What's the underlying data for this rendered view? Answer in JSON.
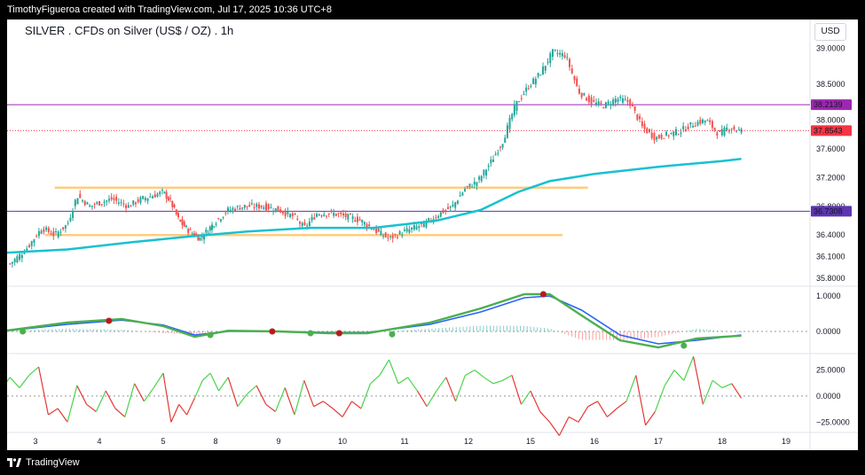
{
  "header": {
    "attribution": "TimothyFigueroa created with TradingView.com, Jul 17, 2025 10:36 UTC+8"
  },
  "footer": {
    "brand": "TradingView",
    "logo_icon": "tradingview-logo-icon"
  },
  "chart_title": "SILVER . CFDs on Silver (US$ / OZ) . 1h",
  "currency": "USD",
  "colors": {
    "up": "#26a69a",
    "down": "#ef5350",
    "ma": "#17c1d0",
    "range": "#ffcc80",
    "level_top": "#9c27b0",
    "level_bottom": "#5e35b1",
    "last_price": "#f23645",
    "macd_fast": "#4caf50",
    "macd_fast_down": "#b71c1c",
    "macd_signal": "#2962ff",
    "rsi_up": "#4cd34c",
    "rsi_down": "#e53935"
  },
  "chart_data": [
    {
      "type": "candlestick",
      "title": "SILVER . CFDs on Silver (US$ / OZ) . 1h",
      "x_ticks": [
        "3",
        "4",
        "5",
        "8",
        "9",
        "10",
        "11",
        "12",
        "15",
        "16",
        "17",
        "18",
        "19"
      ],
      "y_ticks": [
        "39.0000",
        "38.5000",
        "38.0000",
        "37.6000",
        "37.2000",
        "36.8000",
        "36.4000",
        "36.1000",
        "35.8000"
      ],
      "ylim": [
        35.7,
        39.4
      ],
      "price_labels": [
        {
          "value": 38.2139,
          "label": "38.2139",
          "color": "level_top"
        },
        {
          "value": 37.8543,
          "label": "37.8543",
          "color": "last_price"
        },
        {
          "value": 36.7308,
          "label": "36.7308",
          "color": "level_bottom"
        }
      ],
      "horizontal_levels": [
        38.2139,
        36.7308
      ],
      "range_lines": [
        {
          "from_day": 3.3,
          "to_day": 11.9,
          "price": 37.06
        },
        {
          "from_day": 3.15,
          "to_day": 11.5,
          "price": 36.4
        }
      ],
      "close_path": [
        [
          2.6,
          36.0
        ],
        [
          2.85,
          36.2
        ],
        [
          3.1,
          36.5
        ],
        [
          3.3,
          36.4
        ],
        [
          3.5,
          36.55
        ],
        [
          3.65,
          36.95
        ],
        [
          3.85,
          36.8
        ],
        [
          4.0,
          36.85
        ],
        [
          4.2,
          36.9
        ],
        [
          4.45,
          36.8
        ],
        [
          4.65,
          36.9
        ],
        [
          4.85,
          36.95
        ],
        [
          5.0,
          37.0
        ],
        [
          5.15,
          36.85
        ],
        [
          5.3,
          36.6
        ],
        [
          5.5,
          36.45
        ],
        [
          5.7,
          36.35
        ],
        [
          5.95,
          36.55
        ],
        [
          6.2,
          36.75
        ],
        [
          6.45,
          36.8
        ],
        [
          6.75,
          36.8
        ],
        [
          7.0,
          36.75
        ],
        [
          7.25,
          36.65
        ],
        [
          7.4,
          36.5
        ],
        [
          7.6,
          36.7
        ],
        [
          7.85,
          36.7
        ],
        [
          8.1,
          36.65
        ],
        [
          8.3,
          36.6
        ],
        [
          8.55,
          36.45
        ],
        [
          8.75,
          36.35
        ],
        [
          9.0,
          36.45
        ],
        [
          9.3,
          36.55
        ],
        [
          9.55,
          36.7
        ],
        [
          9.75,
          36.8
        ],
        [
          9.95,
          37.05
        ],
        [
          10.15,
          37.15
        ],
        [
          10.35,
          37.4
        ],
        [
          10.55,
          37.7
        ],
        [
          10.75,
          38.2
        ],
        [
          10.95,
          38.45
        ],
        [
          11.15,
          38.65
        ],
        [
          11.35,
          38.95
        ],
        [
          11.55,
          38.9
        ],
        [
          11.75,
          38.4
        ],
        [
          11.95,
          38.25
        ],
        [
          12.15,
          38.2
        ],
        [
          12.35,
          38.3
        ],
        [
          12.55,
          38.25
        ],
        [
          12.75,
          37.9
        ],
        [
          12.95,
          37.75
        ],
        [
          13.15,
          37.8
        ],
        [
          13.35,
          37.85
        ],
        [
          13.55,
          37.95
        ],
        [
          13.75,
          38.0
        ],
        [
          13.95,
          37.8
        ],
        [
          14.1,
          37.9
        ],
        [
          14.3,
          37.85
        ]
      ],
      "ma_path": [
        [
          2.45,
          36.15
        ],
        [
          3.5,
          36.2
        ],
        [
          4.5,
          36.3
        ],
        [
          5.5,
          36.38
        ],
        [
          6.5,
          36.45
        ],
        [
          7.5,
          36.5
        ],
        [
          8.5,
          36.5
        ],
        [
          9.5,
          36.6
        ],
        [
          10.2,
          36.75
        ],
        [
          10.8,
          37.0
        ],
        [
          11.3,
          37.15
        ],
        [
          12.0,
          37.25
        ],
        [
          13.0,
          37.35
        ],
        [
          14.0,
          37.43
        ],
        [
          14.3,
          37.46
        ]
      ]
    },
    {
      "type": "line",
      "title": "",
      "y_ticks": [
        "1.0000",
        "0.0000"
      ],
      "ylim": [
        -0.6,
        1.25
      ],
      "series": [
        {
          "role": "fast",
          "points": [
            [
              2.45,
              0.0
            ],
            [
              3.5,
              0.25
            ],
            [
              4.35,
              0.35
            ],
            [
              5.0,
              0.15
            ],
            [
              5.6,
              -0.15
            ],
            [
              6.2,
              0.02
            ],
            [
              7.0,
              0.0
            ],
            [
              7.8,
              -0.05
            ],
            [
              8.4,
              -0.05
            ],
            [
              9.4,
              0.25
            ],
            [
              10.2,
              0.65
            ],
            [
              10.9,
              1.05
            ],
            [
              11.3,
              1.05
            ],
            [
              11.8,
              0.45
            ],
            [
              12.4,
              -0.25
            ],
            [
              13.0,
              -0.45
            ],
            [
              13.6,
              -0.2
            ],
            [
              14.3,
              -0.12
            ]
          ]
        },
        {
          "role": "signal",
          "points": [
            [
              2.45,
              0.0
            ],
            [
              3.5,
              0.2
            ],
            [
              4.35,
              0.32
            ],
            [
              5.0,
              0.18
            ],
            [
              5.6,
              -0.1
            ],
            [
              6.2,
              0.0
            ],
            [
              7.0,
              0.0
            ],
            [
              7.8,
              -0.03
            ],
            [
              8.4,
              -0.03
            ],
            [
              9.4,
              0.2
            ],
            [
              10.2,
              0.55
            ],
            [
              10.9,
              0.95
            ],
            [
              11.3,
              1.0
            ],
            [
              11.8,
              0.6
            ],
            [
              12.4,
              -0.1
            ],
            [
              13.0,
              -0.35
            ],
            [
              13.6,
              -0.25
            ],
            [
              14.3,
              -0.1
            ]
          ]
        }
      ],
      "cross_markers": [
        [
          2.8,
          0.0,
          "up"
        ],
        [
          4.15,
          0.3,
          "down"
        ],
        [
          5.9,
          -0.1,
          "up"
        ],
        [
          6.9,
          0.0,
          "down"
        ],
        [
          7.5,
          -0.05,
          "up"
        ],
        [
          7.95,
          -0.05,
          "down"
        ],
        [
          8.8,
          -0.08,
          "up"
        ],
        [
          11.2,
          1.05,
          "down"
        ],
        [
          13.4,
          -0.4,
          "up"
        ]
      ]
    },
    {
      "type": "line",
      "title": "",
      "y_ticks": [
        "25.0000",
        "0.0000",
        "−25.0000"
      ],
      "ylim": [
        -35,
        40
      ],
      "series": [
        {
          "role": "oscillator",
          "points": [
            [
              2.45,
              5
            ],
            [
              2.6,
              18
            ],
            [
              2.75,
              8
            ],
            [
              2.9,
              20
            ],
            [
              3.05,
              28
            ],
            [
              3.2,
              -18
            ],
            [
              3.35,
              -12
            ],
            [
              3.5,
              -25
            ],
            [
              3.65,
              10
            ],
            [
              3.8,
              -8
            ],
            [
              3.95,
              -15
            ],
            [
              4.1,
              5
            ],
            [
              4.25,
              -12
            ],
            [
              4.4,
              -20
            ],
            [
              4.55,
              12
            ],
            [
              4.7,
              -5
            ],
            [
              4.85,
              8
            ],
            [
              5.0,
              22
            ],
            [
              5.15,
              -25
            ],
            [
              5.3,
              -8
            ],
            [
              5.45,
              -18
            ],
            [
              5.6,
              -2
            ],
            [
              5.75,
              15
            ],
            [
              5.9,
              22
            ],
            [
              6.05,
              5
            ],
            [
              6.2,
              18
            ],
            [
              6.35,
              -10
            ],
            [
              6.5,
              2
            ],
            [
              6.65,
              10
            ],
            [
              6.8,
              -8
            ],
            [
              6.95,
              -15
            ],
            [
              7.1,
              8
            ],
            [
              7.25,
              -18
            ],
            [
              7.4,
              15
            ],
            [
              7.55,
              -10
            ],
            [
              7.7,
              -5
            ],
            [
              7.85,
              -12
            ],
            [
              8.0,
              -20
            ],
            [
              8.15,
              -5
            ],
            [
              8.3,
              -12
            ],
            [
              8.45,
              12
            ],
            [
              8.6,
              20
            ],
            [
              8.75,
              35
            ],
            [
              8.9,
              12
            ],
            [
              9.05,
              18
            ],
            [
              9.2,
              5
            ],
            [
              9.35,
              -10
            ],
            [
              9.5,
              5
            ],
            [
              9.65,
              18
            ],
            [
              9.8,
              -5
            ],
            [
              9.95,
              20
            ],
            [
              10.1,
              25
            ],
            [
              10.25,
              18
            ],
            [
              10.4,
              12
            ],
            [
              10.55,
              15
            ],
            [
              10.7,
              20
            ],
            [
              10.85,
              -8
            ],
            [
              11.0,
              5
            ],
            [
              11.15,
              -15
            ],
            [
              11.3,
              -25
            ],
            [
              11.45,
              -38
            ],
            [
              11.6,
              -20
            ],
            [
              11.75,
              -25
            ],
            [
              11.9,
              -10
            ],
            [
              12.05,
              -5
            ],
            [
              12.2,
              -20
            ],
            [
              12.35,
              -12
            ],
            [
              12.5,
              -5
            ],
            [
              12.65,
              20
            ],
            [
              12.8,
              -28
            ],
            [
              12.95,
              -15
            ],
            [
              13.1,
              10
            ],
            [
              13.25,
              25
            ],
            [
              13.4,
              15
            ],
            [
              13.55,
              38
            ],
            [
              13.7,
              -8
            ],
            [
              13.85,
              15
            ],
            [
              14.0,
              8
            ],
            [
              14.15,
              12
            ],
            [
              14.3,
              -2
            ]
          ]
        }
      ]
    }
  ]
}
